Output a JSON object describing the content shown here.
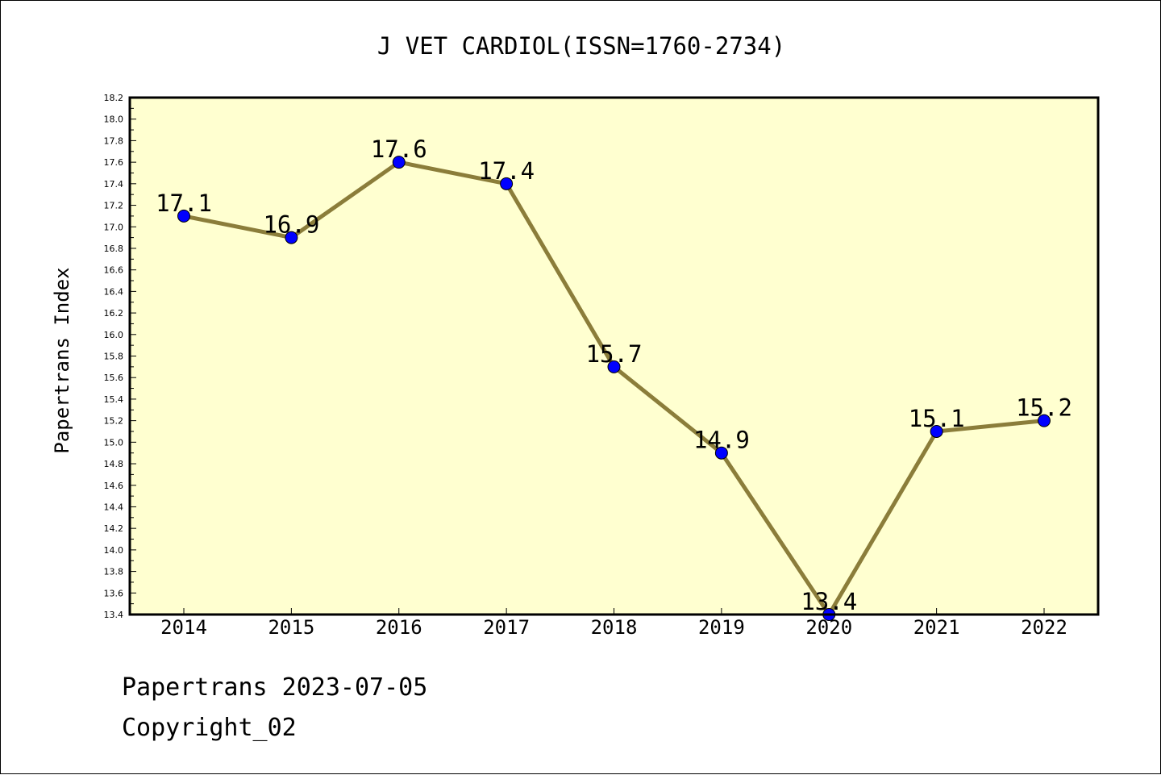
{
  "chart_data": {
    "type": "line",
    "title": "J VET CARDIOL(ISSN=1760-2734)",
    "xlabel": "",
    "ylabel": "Papertrans Index",
    "categories": [
      "2014",
      "2015",
      "2016",
      "2017",
      "2018",
      "2019",
      "2020",
      "2021",
      "2022"
    ],
    "series": [
      {
        "values": [
          17.1,
          16.9,
          17.6,
          17.4,
          15.7,
          14.9,
          13.4,
          15.1,
          15.2
        ],
        "labels": [
          "17.1",
          "16.9",
          "17.6",
          "17.4",
          "15.7",
          "14.9",
          "13.4",
          "15.1",
          "15.2"
        ]
      }
    ],
    "ylim": [
      13.4,
      18.2
    ],
    "ytick_step": 0.2,
    "yticks": [
      "13.4",
      "13.6",
      "13.8",
      "14.0",
      "14.2",
      "14.4",
      "14.6",
      "14.8",
      "15.0",
      "15.2",
      "15.4",
      "15.6",
      "15.8",
      "16.0",
      "16.2",
      "16.4",
      "16.6",
      "16.8",
      "17.0",
      "17.2",
      "17.4",
      "17.6",
      "17.8",
      "18.0",
      "18.2"
    ],
    "grid": false,
    "legend": "none",
    "colors": {
      "plot_background": "#ffffd0",
      "line": "#8b7d3a",
      "marker": "#0000ff",
      "axis": "#000000"
    }
  },
  "footer": {
    "date_text": "Papertrans 2023-07-05",
    "copyright_text": "Copyright_02"
  }
}
